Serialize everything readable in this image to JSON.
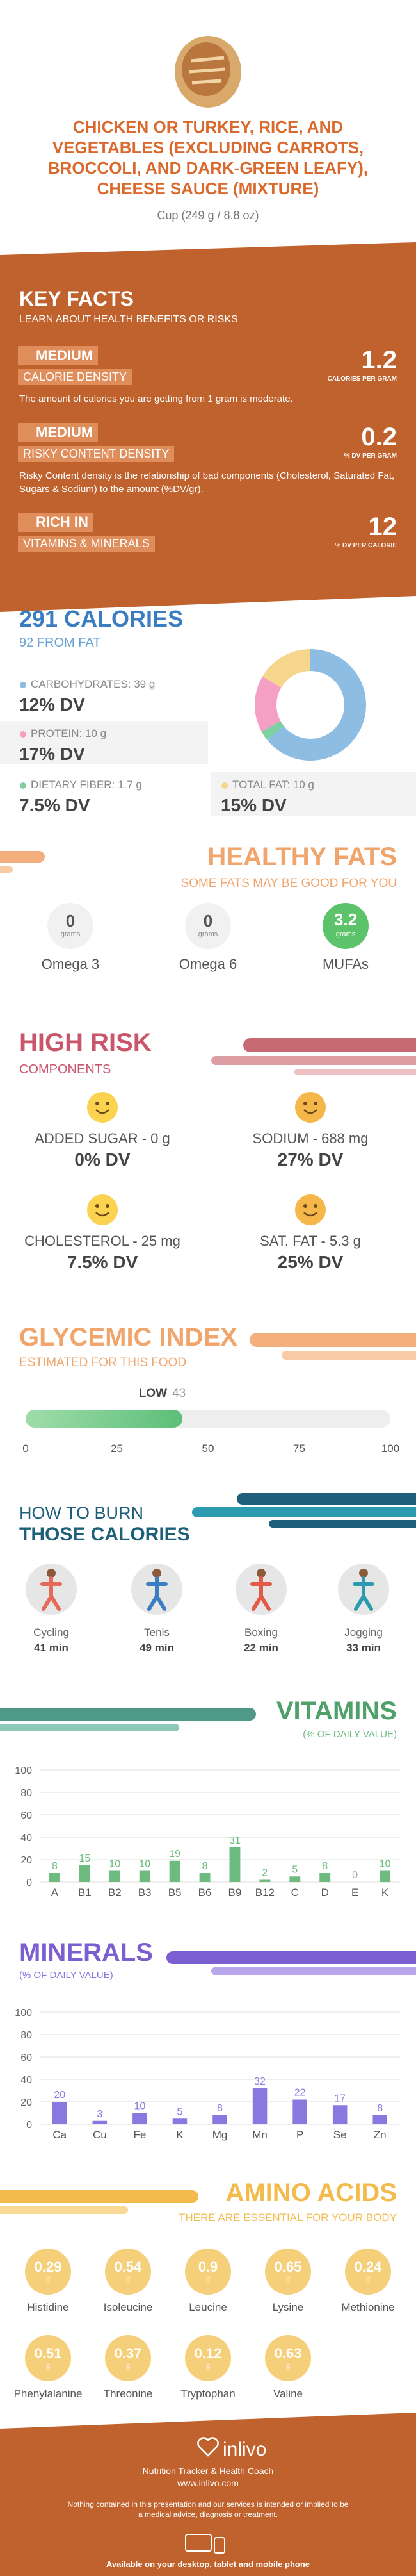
{
  "header": {
    "title": "CHICKEN OR TURKEY, RICE, AND VEGETABLES (EXCLUDING CARROTS, BROCCOLI, AND DARK-GREEN LEAFY), CHEESE SAUCE (MIXTURE)",
    "serving": "Cup (249 g / 8.8 oz)"
  },
  "key_facts": {
    "title": "KEY FACTS",
    "subtitle": "LEARN ABOUT HEALTH BENEFITS OR RISKS",
    "items": [
      {
        "level": "MEDIUM",
        "label": "CALORIE DENSITY",
        "value": "1.2",
        "unit": "CALORIES PER GRAM",
        "description": "The amount of calories you are getting from 1 gram is moderate."
      },
      {
        "level": "MEDIUM",
        "label": "RISKY CONTENT DENSITY",
        "value": "0.2",
        "unit": "% DV PER GRAM",
        "description": "Risky Content density is the relationship of bad components (Cholesterol, Saturated Fat, Sugars & Sodium) to the amount (%DV/gr)."
      },
      {
        "level": "RICH IN",
        "label": "VITAMINS & MINERALS",
        "value": "12",
        "unit": "% DV PER CALORIE"
      }
    ]
  },
  "calories": {
    "title": "291 CALORIES",
    "subtitle": "92 FROM FAT",
    "macros": [
      {
        "label": "CARBOHYDRATES: 39 g",
        "dv": "12% DV"
      },
      {
        "label": "PROTEIN: 10 g",
        "dv": "17% DV"
      },
      {
        "label": "DIETARY FIBER: 1.7 g",
        "dv": "7.5% DV"
      },
      {
        "label": "TOTAL FAT: 10 g",
        "dv": "15% DV"
      }
    ]
  },
  "healthy_fats": {
    "title": "HEALTHY FATS",
    "subtitle": "SOME FATS MAY BE GOOD FOR YOU",
    "items": [
      {
        "name": "Omega 3",
        "value": "0",
        "unit": "grams"
      },
      {
        "name": "Omega 6",
        "value": "0",
        "unit": "grams"
      },
      {
        "name": "MUFAs",
        "value": "3.2",
        "unit": "grams"
      }
    ]
  },
  "high_risk": {
    "title": "HIGH RISK",
    "subtitle": "COMPONENTS",
    "items": [
      {
        "label": "ADDED SUGAR - 0 g",
        "dv": "0% DV"
      },
      {
        "label": "SODIUM - 688 mg",
        "dv": "27% DV"
      },
      {
        "label": "CHOLESTEROL - 25 mg",
        "dv": "7.5% DV"
      },
      {
        "label": "SAT. FAT - 5.3 g",
        "dv": "25% DV"
      }
    ]
  },
  "burn": {
    "title": "HOW TO BURN",
    "subtitle": "THOSE CALORIES",
    "activities": [
      {
        "name": "Cycling",
        "time": "41 min"
      },
      {
        "name": "Tenis",
        "time": "49 min"
      },
      {
        "name": "Boxing",
        "time": "22 min"
      },
      {
        "name": "Jogging",
        "time": "33 min"
      }
    ]
  },
  "amino_acids": {
    "title": "AMINO ACIDS",
    "subtitle": "THERE ARE ESSENTIAL FOR YOUR BODY",
    "items": [
      {
        "name": "Histidine",
        "value": "0.29",
        "unit": "g"
      },
      {
        "name": "Isoleucine",
        "value": "0.54",
        "unit": "g"
      },
      {
        "name": "Leucine",
        "value": "0.9",
        "unit": "g"
      },
      {
        "name": "Lysine",
        "value": "0.65",
        "unit": "g"
      },
      {
        "name": "Methionine",
        "value": "0.24",
        "unit": "g"
      },
      {
        "name": "Phenylalanine",
        "value": "0.51",
        "unit": "g"
      },
      {
        "name": "Threonine",
        "value": "0.37",
        "unit": "g"
      },
      {
        "name": "Tryptophan",
        "value": "0.12",
        "unit": "g"
      },
      {
        "name": "Valine",
        "value": "0.63",
        "unit": "g"
      }
    ]
  },
  "footer": {
    "brand": "inlivo",
    "tagline": "Nutrition Tracker & Health Coach",
    "url": "www.inlivo.com",
    "disclaimer": "Nothing contained in this presentation and our services is intended or implied to be a medical advice, diagnosis or treatment.",
    "availability": "Available on your desktop, tablet and mobile phone"
  },
  "chart_data": [
    {
      "type": "pie",
      "values": [
        39,
        1.7,
        10,
        10
      ],
      "colors": [
        "#8ebde3",
        "#7fd0a0",
        "#f3a0c4",
        "#f6d58c"
      ]
    },
    {
      "type": "gauge",
      "title": "GLYCEMIC INDEX",
      "subtitle": "ESTIMATED FOR THIS FOOD",
      "value_label": "LOW",
      "value": 43,
      "xlim": [
        0,
        100
      ],
      "xticks": [
        0,
        25,
        50,
        75,
        100
      ],
      "color": "#6cc785"
    },
    {
      "type": "bar",
      "title": "VITAMINS",
      "subtitle": "(% OF DAILY VALUE)",
      "categories": [
        "A",
        "B1",
        "B2",
        "B3",
        "B5",
        "B6",
        "B9",
        "B12",
        "C",
        "D",
        "E",
        "K"
      ],
      "values": [
        8,
        15,
        10,
        10,
        19,
        8,
        31,
        2,
        5,
        8,
        0,
        10
      ],
      "color": "#6dbb7f",
      "ylim": [
        0,
        100
      ],
      "yticks": [
        0,
        20,
        40,
        60,
        80,
        100
      ],
      "grid": true
    },
    {
      "type": "bar",
      "title": "MINERALS",
      "subtitle": "(% OF DAILY VALUE)",
      "categories": [
        "Ca",
        "Cu",
        "Fe",
        "K",
        "Mg",
        "Mn",
        "P",
        "Se",
        "Zn"
      ],
      "values": [
        20,
        3,
        10,
        5,
        8,
        32,
        22,
        17,
        8
      ],
      "color": "#8878e0",
      "ylim": [
        0,
        100
      ],
      "yticks": [
        0,
        20,
        40,
        60,
        80,
        100
      ],
      "grid": true
    }
  ]
}
